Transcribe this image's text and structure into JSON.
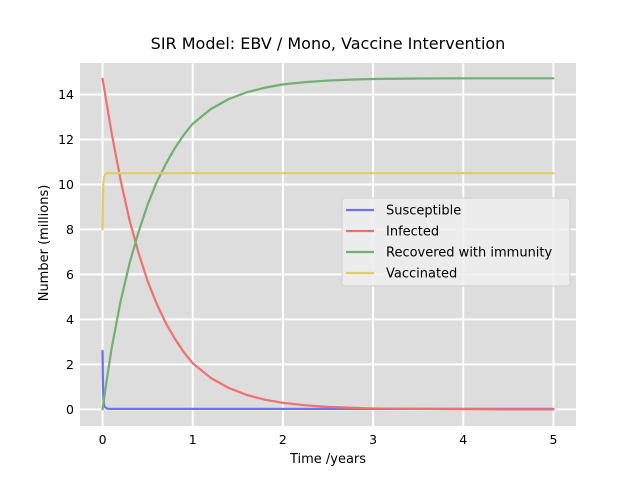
{
  "chart_data": {
    "type": "line",
    "title": "SIR Model: EBV / Mono, Vaccine Intervention",
    "xlabel": "Time /years",
    "ylabel": "Number (millions)",
    "xlim": [
      -0.25,
      5.25
    ],
    "ylim": [
      -0.74,
      15.4
    ],
    "xticks": [
      0,
      1,
      2,
      3,
      4,
      5
    ],
    "yticks": [
      0,
      2,
      4,
      6,
      8,
      10,
      12,
      14
    ],
    "grid": true,
    "background": "#dddddd",
    "legend_position": "center-right",
    "series": [
      {
        "name": "Susceptible",
        "color": "#7070f0",
        "x": [
          0,
          0.003,
          0.006,
          0.01,
          0.02,
          0.05,
          0.1,
          0.5,
          1,
          2,
          3,
          4,
          5
        ],
        "y": [
          2.6,
          1.6,
          0.9,
          0.45,
          0.12,
          0.03,
          0.02,
          0.02,
          0.02,
          0.02,
          0.02,
          0.02,
          0.02
        ]
      },
      {
        "name": "Infected",
        "color": "#ee7070",
        "x": [
          0,
          0.1,
          0.2,
          0.3,
          0.4,
          0.5,
          0.6,
          0.7,
          0.8,
          0.9,
          1.0,
          1.2,
          1.4,
          1.6,
          1.8,
          2.0,
          2.25,
          2.5,
          2.75,
          3.0,
          3.5,
          4.0,
          4.5,
          5.0
        ],
        "y": [
          14.7,
          12.3,
          10.2,
          8.4,
          6.95,
          5.7,
          4.7,
          3.85,
          3.15,
          2.55,
          2.05,
          1.4,
          0.95,
          0.64,
          0.43,
          0.29,
          0.18,
          0.11,
          0.07,
          0.04,
          0.02,
          0.01,
          0.0,
          0.0
        ]
      },
      {
        "name": "Recovered with immunity",
        "color": "#70b070",
        "x": [
          0,
          0.05,
          0.1,
          0.2,
          0.3,
          0.4,
          0.5,
          0.6,
          0.7,
          0.8,
          0.9,
          1.0,
          1.2,
          1.4,
          1.6,
          1.8,
          2.0,
          2.25,
          2.5,
          2.75,
          3.0,
          3.5,
          4.0,
          4.5,
          5.0
        ],
        "y": [
          0,
          1.4,
          2.7,
          4.8,
          6.5,
          7.9,
          9.1,
          10.1,
          10.9,
          11.6,
          12.2,
          12.7,
          13.35,
          13.8,
          14.1,
          14.3,
          14.45,
          14.55,
          14.62,
          14.66,
          14.69,
          14.71,
          14.72,
          14.72,
          14.72
        ]
      },
      {
        "name": "Vaccinated",
        "color": "#dcd060",
        "x": [
          0,
          0.003,
          0.006,
          0.01,
          0.02,
          0.03,
          0.05,
          0.1,
          1,
          2,
          3,
          4,
          5
        ],
        "y": [
          8.0,
          9.0,
          9.7,
          10.1,
          10.35,
          10.45,
          10.5,
          10.5,
          10.5,
          10.5,
          10.5,
          10.5,
          10.5
        ]
      }
    ]
  }
}
